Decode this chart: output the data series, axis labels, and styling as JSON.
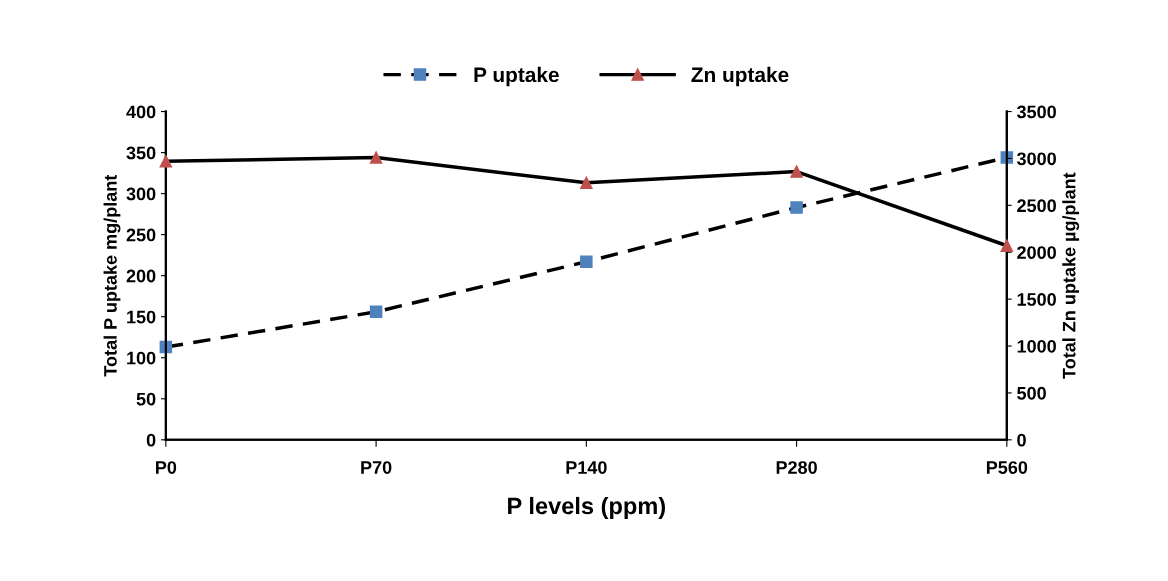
{
  "chart_data": {
    "type": "line",
    "xlabel": "P levels (ppm)",
    "ylabel": "Total P uptake mg/plant",
    "y2label": "Total Zn uptake µg/plant",
    "categories": [
      "P0",
      "P70",
      "P140",
      "P280",
      "P560"
    ],
    "series": [
      {
        "name": "P uptake",
        "color": "#4f81bd",
        "marker": "square",
        "line_style": "dashed",
        "values": [
          113,
          156,
          217,
          283,
          344
        ]
      },
      {
        "name": "Zn uptake",
        "color": "#c0504d",
        "marker": "triangle",
        "line_style": "solid",
        "axis": "y2",
        "values": [
          2970,
          3010,
          2740,
          2860,
          2070
        ]
      }
    ],
    "ylim": [
      0,
      400
    ],
    "yticks": [
      0,
      50,
      100,
      150,
      200,
      250,
      300,
      350,
      400
    ],
    "y2lim": [
      0,
      3500
    ],
    "y2ticks": [
      0,
      500,
      1000,
      1500,
      2000,
      2500,
      3000,
      3500
    ],
    "grid": false,
    "legend": "top"
  }
}
